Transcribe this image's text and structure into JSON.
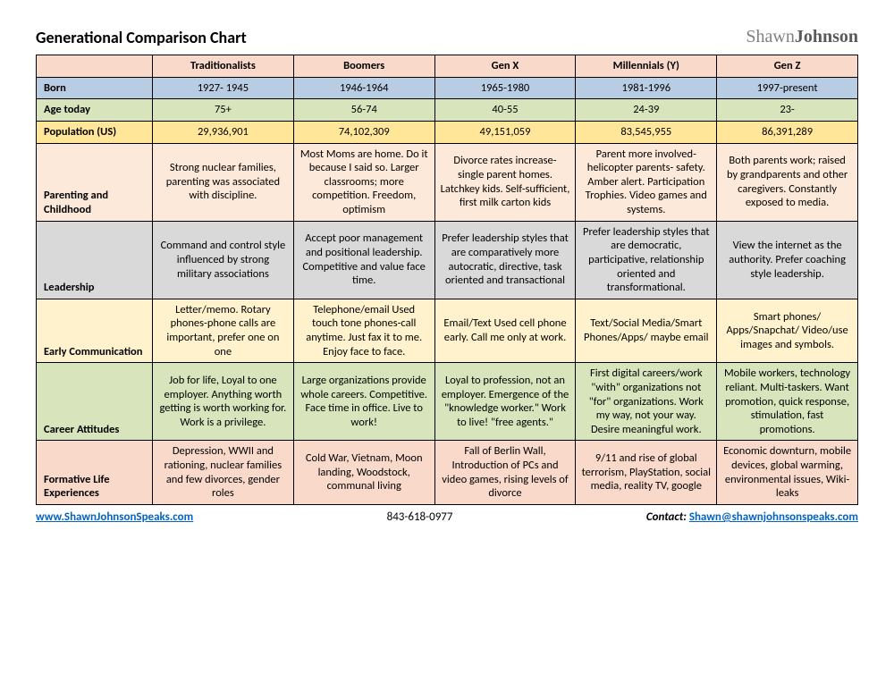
{
  "title": "Generational Comparison Chart",
  "brand_light": "Shawn",
  "brand_bold": "Johnson",
  "colors": {
    "header_row": "#f9d9c9",
    "born": "#b8cce4",
    "age": "#d7e4bc",
    "population": "#ffe699",
    "parenting": "#fde9d9",
    "leadership": "#d9d9d9",
    "communication": "#fff2cc",
    "career": "#d7e4bc",
    "formative": "#f9d9c9",
    "border": "#000000"
  },
  "columns": [
    "Traditionalists",
    "Boomers",
    "Gen X",
    "Millennials (Y)",
    "Gen Z"
  ],
  "rows": [
    {
      "label": "Born",
      "bg": "born",
      "cells": [
        "1927- 1945",
        "1946-1964",
        "1965-1980",
        "1981-1996",
        "1997-present"
      ]
    },
    {
      "label": "Age today",
      "bg": "age",
      "cells": [
        "75+",
        "56-74",
        "40-55",
        "24-39",
        "23-"
      ]
    },
    {
      "label": "Population (US)",
      "bg": "population",
      "cells": [
        "29,936,901",
        "74,102,309",
        "49,151,059",
        "83,545,955",
        "86,391,289"
      ]
    },
    {
      "label": "Parenting and Childhood",
      "bg": "parenting",
      "cells": [
        "Strong nuclear families, parenting was associated with discipline.",
        "Most Moms are home. Do it because I said so. Larger classrooms; more competition. Freedom, optimism",
        "Divorce rates increase- single parent homes. Latchkey kids. Self-sufficient, first milk carton kids",
        "Parent more involved- helicopter parents- safety.  Amber alert. Participation Trophies. Video games and systems.",
        "Both parents work; raised by grandparents and other caregivers. Constantly exposed to media."
      ]
    },
    {
      "label": "Leadership",
      "bg": "leadership",
      "cells": [
        "Command and control style influenced by strong military associations",
        "Accept poor management and positional leadership. Competitive and value face time.",
        "Prefer leadership styles that are comparatively more autocratic, directive, task oriented and transactional",
        "Prefer leadership styles that are democratic, participative, relationship oriented and transformational.",
        "View the internet as the authority. Prefer coaching style leadership."
      ]
    },
    {
      "label": "Early Communication",
      "bg": "communication",
      "cells": [
        "Letter/memo. Rotary phones-phone calls are important, prefer one on one",
        "Telephone/email Used touch tone phones-call anytime. Just fax it to me. Enjoy face to face.",
        "Email/Text Used cell phone early.  Call me only at work.",
        "Text/Social Media/Smart Phones/Apps/ maybe email",
        "Smart phones/ Apps/Snapchat/ Video/use images and symbols."
      ]
    },
    {
      "label": "Career Attitudes",
      "bg": "career",
      "cells": [
        "Job for life, Loyal to one employer. Anything worth getting is worth working for. Work is a privilege.",
        "Large organizations provide whole careers.  Competitive. Face time in office. Live to work!",
        "Loyal to profession, not an employer. Emergence of the \"knowledge worker.\" Work to live!   \"free agents.\"",
        "First digital careers/work \"with\" organizations not \"for\" organizations.  Work my way, not your way. Desire meaningful work.",
        "Mobile workers, technology reliant. Multi-taskers.   Want promotion, quick response, stimulation, fast promotions."
      ]
    },
    {
      "label": "Formative Life Experiences",
      "bg": "formative",
      "cells": [
        "Depression, WWII and rationing, nuclear families and few divorces, gender roles",
        "Cold War, Vietnam, Moon landing, Woodstock, communal living",
        "Fall of Berlin Wall, Introduction of PCs and video games, rising levels of divorce",
        "9/11 and rise of global terrorism, PlayStation, social media, reality TV, google",
        "Economic downturn, mobile devices, global warming, environmental issues, Wiki-leaks"
      ]
    }
  ],
  "footer": {
    "website_text": "www.ShawnJohnsonSpeaks.com",
    "phone": "843-618-0977",
    "contact_label": "Contact:",
    "email_text": "Shawn@shawnjohnsonspeaks.com"
  }
}
